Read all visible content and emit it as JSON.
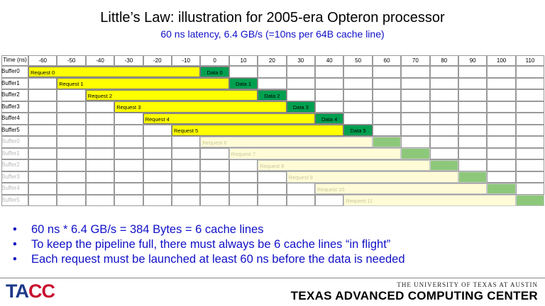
{
  "title": "Little’s Law: illustration for 2005-era Opteron processor",
  "subtitle": "60 ns latency, 6.4 GB/s (=10ns per 64B cache line)",
  "table": {
    "corner_label": "Time (ns)",
    "times": [
      "-60",
      "-50",
      "-40",
      "-30",
      "-20",
      "-10",
      "0",
      "10",
      "20",
      "30",
      "40",
      "50",
      "60",
      "70",
      "80",
      "90",
      "100",
      "110"
    ],
    "rows": [
      {
        "label": "Buffer0",
        "request": "Request 0",
        "data": "Data 0",
        "start": 0,
        "faded": false
      },
      {
        "label": "Buffer1",
        "request": "Request 1",
        "data": "Data 1",
        "start": 1,
        "faded": false
      },
      {
        "label": "Buffer2",
        "request": "Request 2",
        "data": "Data 2",
        "start": 2,
        "faded": false
      },
      {
        "label": "Buffer3",
        "request": "Request 3",
        "data": "Data 3",
        "start": 3,
        "faded": false
      },
      {
        "label": "Buffer4",
        "request": "Request 4",
        "data": "Data 4",
        "start": 4,
        "faded": false
      },
      {
        "label": "Buffer5",
        "request": "Request 5",
        "data": "Data 5",
        "start": 5,
        "faded": false
      },
      {
        "label": "Buffer0",
        "request": "Request 6",
        "data": "",
        "start": 6,
        "faded": true
      },
      {
        "label": "Buffer1",
        "request": "Request 7",
        "data": "",
        "start": 7,
        "faded": true
      },
      {
        "label": "Buffer2",
        "request": "Request 8",
        "data": "",
        "start": 8,
        "faded": true
      },
      {
        "label": "Buffer3",
        "request": "Request 9",
        "data": "",
        "start": 9,
        "faded": true
      },
      {
        "label": "Buffer4",
        "request": "Request 10",
        "data": "",
        "start": 10,
        "faded": true
      },
      {
        "label": "Buffer5",
        "request": "Request 11",
        "data": "",
        "start": 11,
        "faded": true
      }
    ]
  },
  "bullets": [
    "60 ns * 6.4 GB/s = 384 Bytes = 6 cache lines",
    "To keep the pipeline full, there must always be 6 cache lines “in flight”",
    "Each request must be launched at least 60 ns before the data is needed"
  ],
  "footer": {
    "logo_left": "TA",
    "logo_right": "CC",
    "university": "THE UNIVERSITY OF TEXAS AT AUSTIN",
    "center": "TEXAS ADVANCED COMPUTING CENTER"
  }
}
